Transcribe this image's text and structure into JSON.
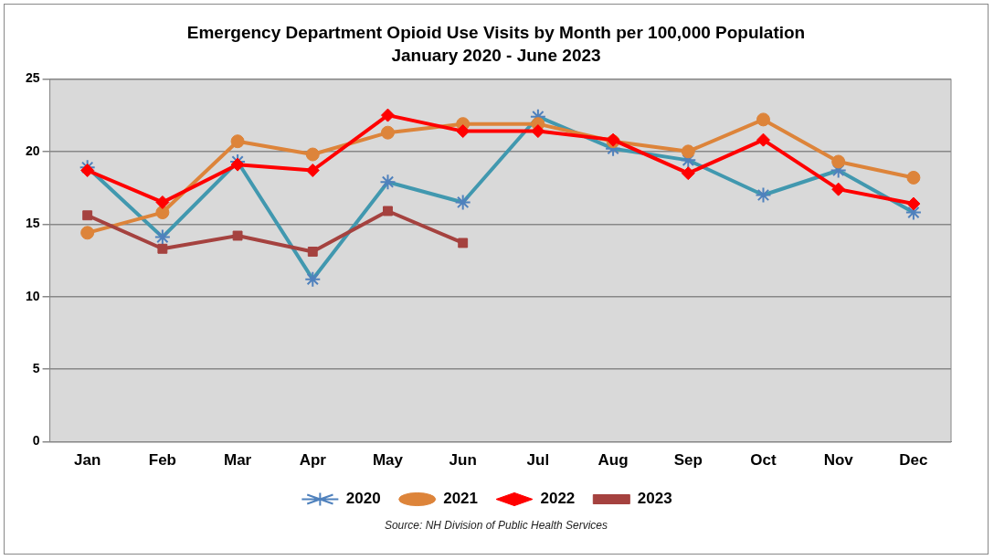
{
  "chart_data": {
    "type": "line",
    "title": "Emergency Department Opioid Use Visits by Month per 100,000 Population",
    "subtitle": "January 2020 - June 2023",
    "categories": [
      "Jan",
      "Feb",
      "Mar",
      "Apr",
      "May",
      "Jun",
      "Jul",
      "Aug",
      "Sep",
      "Oct",
      "Nov",
      "Dec"
    ],
    "series": [
      {
        "name": "2020",
        "color": "#4198af",
        "marker": "cross",
        "values": [
          18.9,
          14.1,
          19.3,
          11.2,
          17.9,
          16.5,
          22.4,
          20.2,
          19.4,
          17.0,
          18.7,
          15.8
        ]
      },
      {
        "name": "2021",
        "color": "#dd843a",
        "marker": "circle",
        "values": [
          14.4,
          15.8,
          20.7,
          19.8,
          21.3,
          21.9,
          21.9,
          20.7,
          20.0,
          22.2,
          19.3,
          18.2
        ]
      },
      {
        "name": "2022",
        "color": "#ff0000",
        "marker": "diamond",
        "values": [
          18.7,
          16.5,
          19.1,
          18.7,
          22.5,
          21.4,
          21.4,
          20.8,
          18.5,
          20.8,
          17.4,
          16.4
        ]
      },
      {
        "name": "2023",
        "color": "#a5423f",
        "marker": "square",
        "values": [
          15.6,
          13.3,
          14.2,
          13.1,
          15.9,
          13.7,
          null,
          null,
          null,
          null,
          null,
          null
        ]
      }
    ],
    "ylim": [
      0,
      25
    ],
    "yticks": [
      0,
      5,
      10,
      15,
      20,
      25
    ],
    "grid": "y",
    "legend": "bottom",
    "line_style": "solid",
    "annotations": [
      "Source: NH Division of Public Health Services"
    ]
  }
}
